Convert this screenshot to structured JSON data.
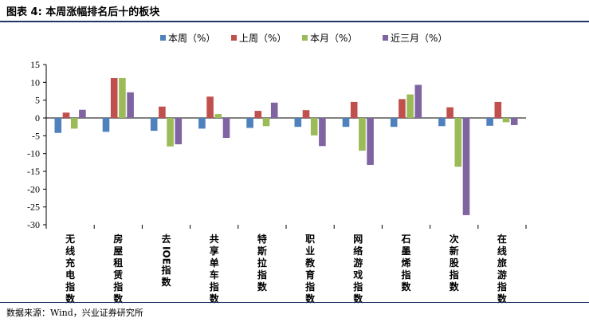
{
  "header": {
    "title": "图表 4:  本周涨幅排名后十的板块"
  },
  "footer": {
    "source": "数据来源：Wind，兴业证券研究所"
  },
  "chart_data": {
    "type": "bar",
    "categories": [
      "无线充电指数",
      "房屋租赁指数",
      "去IOE指数",
      "共享单车指数",
      "特斯拉指数",
      "职业教育指数",
      "网络游戏指数",
      "石墨烯指数",
      "次新股指数",
      "在线旅游指数"
    ],
    "series": [
      {
        "name": "本周（%）",
        "color": "#4f81bd",
        "values": [
          -4.2,
          -3.9,
          -3.6,
          -3.0,
          -2.8,
          -2.5,
          -2.5,
          -2.5,
          -2.3,
          -2.2
        ]
      },
      {
        "name": "上周（%）",
        "color": "#c0504d",
        "values": [
          1.5,
          11.2,
          3.2,
          6.0,
          2.0,
          2.2,
          4.5,
          5.3,
          3.0,
          4.5
        ]
      },
      {
        "name": "本月（%）",
        "color": "#9bbb59",
        "values": [
          -3.0,
          11.2,
          -8.0,
          1.1,
          -2.3,
          -4.9,
          -9.2,
          6.6,
          -13.7,
          -1.2
        ]
      },
      {
        "name": "近三月（%）",
        "color": "#8064a2",
        "values": [
          2.3,
          7.2,
          -7.4,
          -5.6,
          4.3,
          -7.9,
          -13.2,
          9.3,
          -27.3,
          -2.0
        ]
      }
    ],
    "ylim": [
      -30,
      15
    ],
    "yticks": [
      15,
      10,
      5,
      0,
      -5,
      -10,
      -15,
      -20,
      -25,
      -30
    ],
    "legend_position": "top",
    "grid": false
  }
}
